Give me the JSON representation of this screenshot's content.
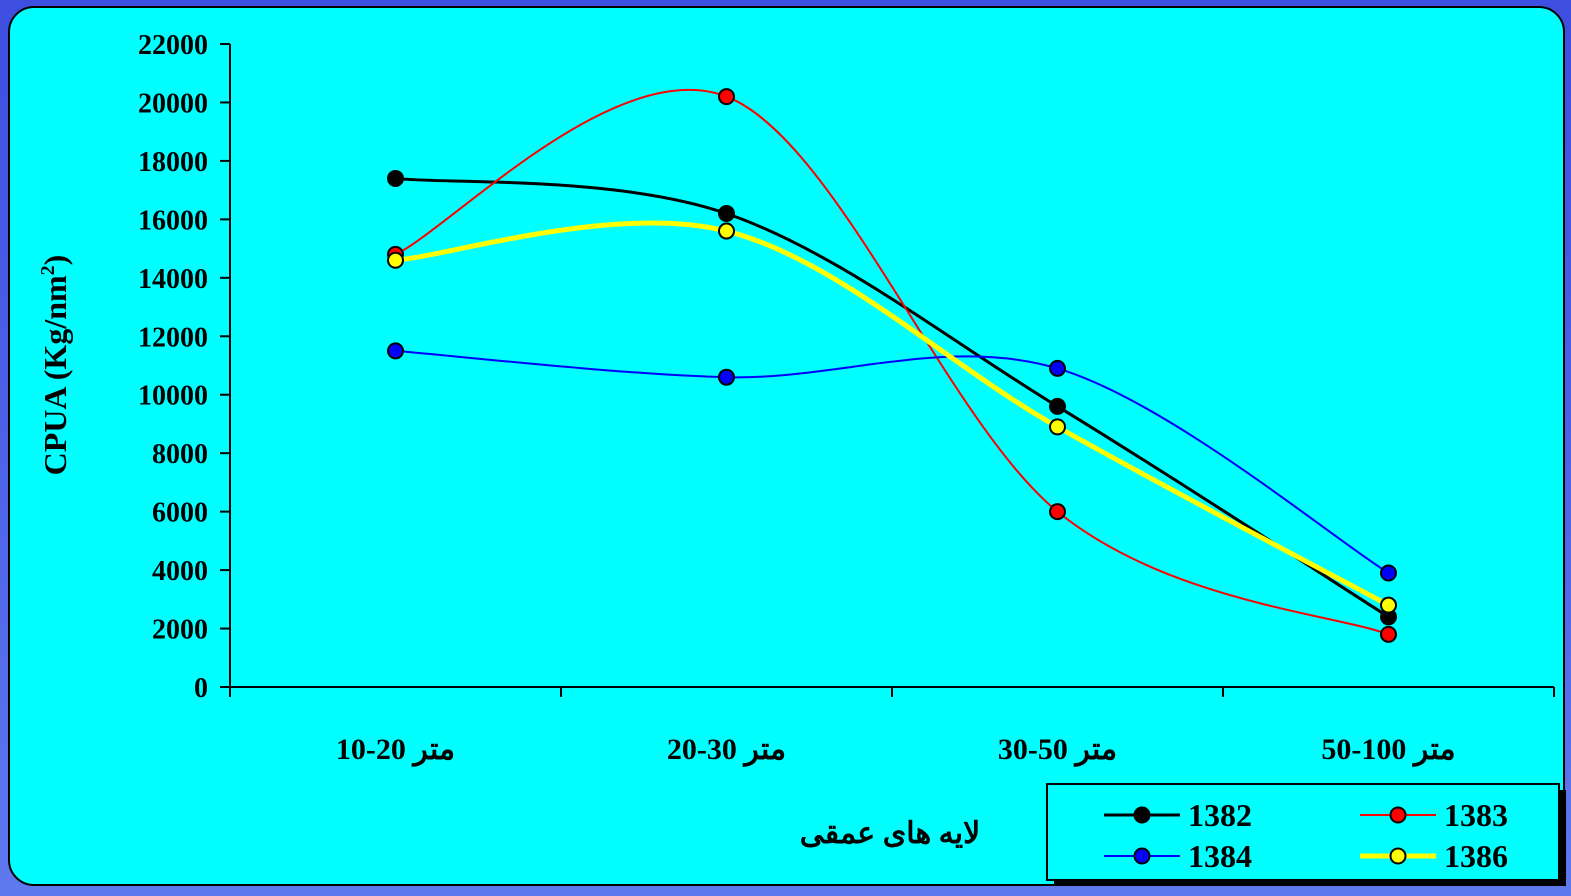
{
  "chart_data": {
    "type": "line",
    "title": "",
    "ylabel": "CPUA (Kg/nm",
    "ylabel_sup": "2",
    "ylabel_close": ")",
    "xlabel": "لایه های عمقی",
    "ylim": [
      0,
      22000
    ],
    "yticks": [
      "0",
      "2000",
      "4000",
      "6000",
      "8000",
      "10000",
      "12000",
      "14000",
      "16000",
      "18000",
      "20000",
      "22000"
    ],
    "categories": [
      "10-20 متر",
      "20-30 متر",
      "30-50 متر",
      "50-100 متر"
    ],
    "smooth": true,
    "grid": false,
    "legend_position": "bottom-right",
    "series": [
      {
        "name": "1382",
        "values": [
          17400,
          16200,
          9600,
          2400
        ],
        "color": "#000000",
        "marker_fill": "#000000",
        "stroke_width": 3
      },
      {
        "name": "1383",
        "values": [
          14800,
          20200,
          6000,
          1800
        ],
        "color": "#ff0000",
        "marker_fill": "#ff0000",
        "stroke_width": 2
      },
      {
        "name": "1384",
        "values": [
          11500,
          10600,
          10900,
          3900
        ],
        "color": "#0000ff",
        "marker_fill": "#0000ff",
        "stroke_width": 2
      },
      {
        "name": "1386",
        "values": [
          14600,
          15600,
          8900,
          2800
        ],
        "color": "#ffff00",
        "marker_fill": "#ffff00",
        "stroke_width": 5
      }
    ]
  }
}
